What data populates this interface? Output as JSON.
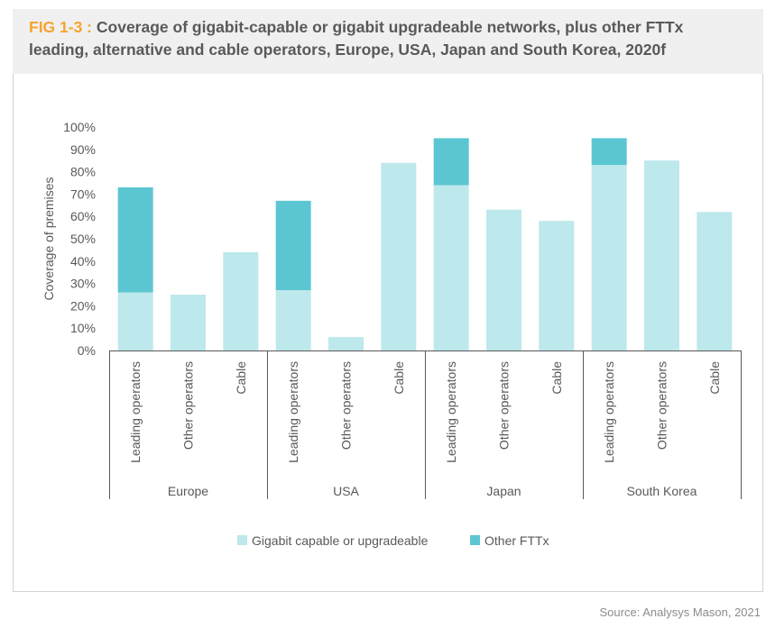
{
  "header": {
    "fig_label": "FIG 1-3 :",
    "title_line1": "Coverage of gigabit-capable or gigabit upgradeable networks, plus other FTTx",
    "title_line2": "leading, alternative and cable operators, Europe, USA, Japan and South Korea, 2020f"
  },
  "source": "Source: Analysys Mason, 2021",
  "colors": {
    "gigabit": "#bde8ec",
    "fttx": "#5bc6d1",
    "fig_label": "#f6a32c"
  },
  "chart_data": {
    "type": "bar",
    "stacked": true,
    "ylabel": "Coverage of premises",
    "ylim": [
      0,
      100
    ],
    "yticks": [
      "0%",
      "10%",
      "20%",
      "30%",
      "40%",
      "50%",
      "60%",
      "70%",
      "80%",
      "90%",
      "100%"
    ],
    "groups": [
      "Europe",
      "USA",
      "Japan",
      "South Korea"
    ],
    "categories": [
      "Leading operators",
      "Other operators",
      "Cable",
      "Leading operators",
      "Other operators",
      "Cable",
      "Leading operators",
      "Other operators",
      "Cable",
      "Leading operators",
      "Other operators",
      "Cable"
    ],
    "series": [
      {
        "name": "Gigabit capable or upgradeable",
        "values": [
          26,
          25,
          44,
          27,
          6,
          84,
          74,
          63,
          58,
          83,
          85,
          62
        ]
      },
      {
        "name": "Other FTTx",
        "values": [
          47,
          0,
          0,
          40,
          0,
          0,
          21,
          0,
          0,
          12,
          0,
          0
        ]
      }
    ],
    "legend_position": "bottom",
    "grid": false
  }
}
